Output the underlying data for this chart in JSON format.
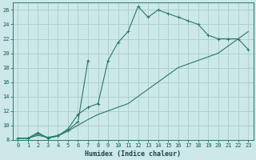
{
  "xlabel": "Humidex (Indice chaleur)",
  "bg_color": "#cce8e8",
  "grid_color": "#aacccc",
  "line_color": "#2a7868",
  "xlim": [
    -0.5,
    23.5
  ],
  "ylim": [
    8,
    27
  ],
  "xticks": [
    0,
    1,
    2,
    3,
    4,
    5,
    6,
    7,
    8,
    9,
    10,
    11,
    12,
    13,
    14,
    15,
    16,
    17,
    18,
    19,
    20,
    21,
    22,
    23
  ],
  "yticks": [
    8,
    10,
    12,
    14,
    16,
    18,
    20,
    22,
    24,
    26
  ],
  "curve1_x": [
    0,
    1,
    2,
    3,
    4,
    5,
    6,
    7,
    8,
    9,
    10,
    11,
    12,
    13,
    14,
    15,
    16,
    17,
    18,
    19,
    20,
    21,
    22,
    23
  ],
  "curve1_y": [
    8.2,
    8.2,
    9.0,
    8.2,
    8.5,
    9.5,
    11.5,
    12.5,
    13.0,
    19.0,
    21.5,
    23.0,
    26.5,
    25.0,
    26.0,
    25.5,
    25.0,
    24.5,
    24.0,
    22.5,
    22.0,
    22.0,
    22.0,
    20.5
  ],
  "curve2_x": [
    0,
    1,
    2,
    3,
    4,
    5,
    6,
    7
  ],
  "curve2_y": [
    8.2,
    8.2,
    8.8,
    8.3,
    8.6,
    9.3,
    10.5,
    19.0
  ],
  "curve3_x": [
    0,
    1,
    2,
    3,
    4,
    5,
    6,
    7,
    8,
    9,
    10,
    11,
    12,
    13,
    14,
    15,
    16,
    17,
    18,
    19,
    20,
    21,
    22,
    23
  ],
  "curve3_y": [
    8.2,
    8.2,
    8.6,
    8.3,
    8.5,
    9.2,
    10.0,
    10.8,
    11.5,
    12.0,
    12.5,
    13.0,
    14.0,
    15.0,
    16.0,
    17.0,
    18.0,
    18.5,
    19.0,
    19.5,
    20.0,
    21.0,
    22.0,
    23.0
  ],
  "xlabel_fontsize": 6.0,
  "tick_fontsize": 5.0
}
